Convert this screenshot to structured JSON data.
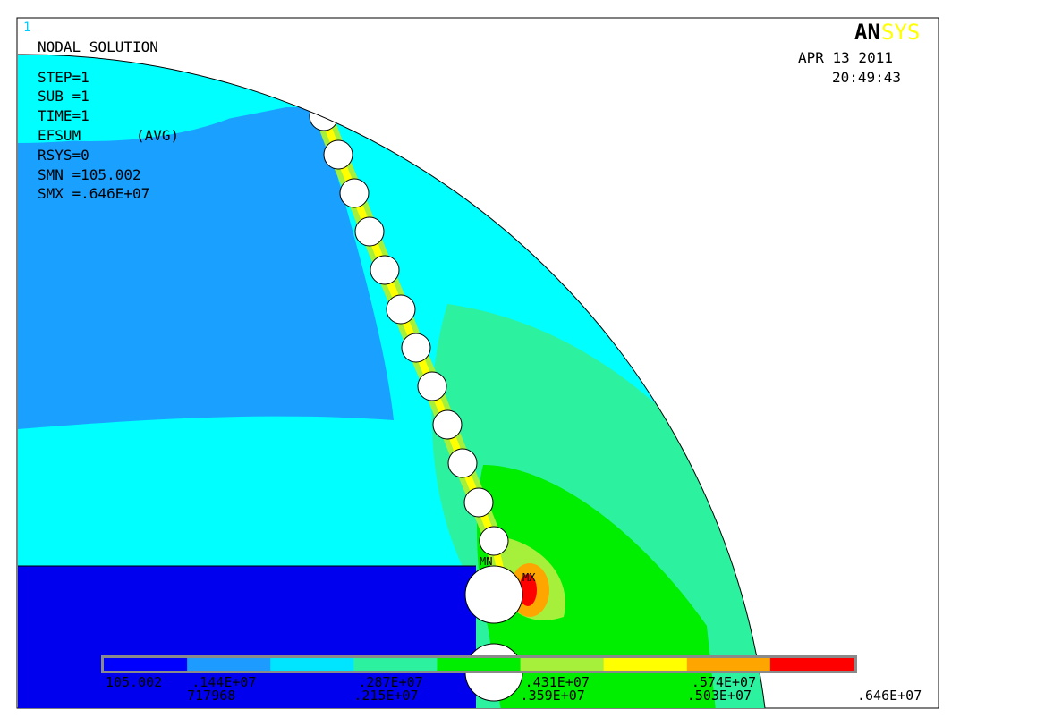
{
  "window_number": "1",
  "title": "NODAL SOLUTION",
  "solution_info": {
    "step": "STEP=1",
    "sub": "SUB =1",
    "time": "TIME=1",
    "quantity": "EFSUM",
    "avg": "(AVG)",
    "rsys": "RSYS=0",
    "smn": "SMN =105.002",
    "smx": "SMX =.646E+07"
  },
  "logo": {
    "an": "AN",
    "sys": "SYS"
  },
  "date": "APR 13 2011",
  "time_of_day": "20:49:43",
  "markers": {
    "min": "MN",
    "max": "MX"
  },
  "legend": {
    "colors": [
      "#0000ff",
      "#1e9bff",
      "#00e5ff",
      "#2cf2a0",
      "#00ee00",
      "#a6f03c",
      "#ffff00",
      "#ffa500",
      "#ff0000"
    ],
    "labels_top": [
      "105.002",
      ".144E+07",
      ".287E+07",
      ".431E+07",
      ".574E+07"
    ],
    "labels_bottom": [
      "717968",
      ".215E+07",
      ".359E+07",
      ".503E+07",
      ".646E+07"
    ]
  },
  "colors": {
    "outer_region": "#00ffff",
    "inner_region": "#1aa0ff",
    "bottom_region": "#0000ee",
    "accent_logo": "#000000",
    "accent_logo_sys": "#ffff00",
    "frame": "#000000"
  }
}
